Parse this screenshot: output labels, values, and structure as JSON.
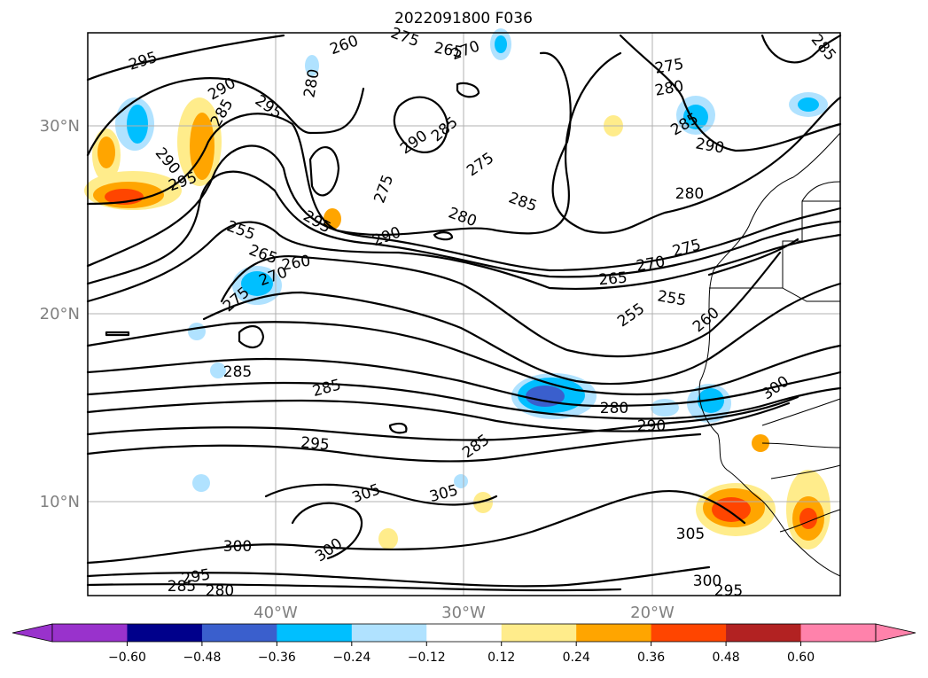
{
  "title": "2022091800 F036",
  "map": {
    "lat_labels": [
      {
        "value": 30,
        "text": "30°N"
      },
      {
        "value": 20,
        "text": "20°N"
      },
      {
        "value": 10,
        "text": "10°N"
      }
    ],
    "lon_labels": [
      {
        "value": -40,
        "text": "40°W"
      },
      {
        "value": -30,
        "text": "30°W"
      },
      {
        "value": -20,
        "text": "20°W"
      }
    ],
    "extent": {
      "lon_min": -50,
      "lon_max": -10,
      "lat_min": 5,
      "lat_max": 35
    },
    "grid": true,
    "contour_labels": [
      "295",
      "290",
      "285",
      "280",
      "275",
      "270",
      "265",
      "260",
      "255",
      "300",
      "305",
      "290",
      "285",
      "280",
      "275",
      "270",
      "265",
      "260",
      "255"
    ]
  },
  "colorbar": {
    "ticks": [
      "−0.60",
      "−0.48",
      "−0.36",
      "−0.24",
      "−0.12",
      "0.12",
      "0.24",
      "0.36",
      "0.48",
      "0.60"
    ],
    "colors": [
      "#9932cc",
      "#00008b",
      "#3a5fcd",
      "#00bfff",
      "#b0e2ff",
      "#ffffff",
      "#ffec8b",
      "#ffa500",
      "#ff4500",
      "#b22222",
      "#ff82ab"
    ]
  }
}
